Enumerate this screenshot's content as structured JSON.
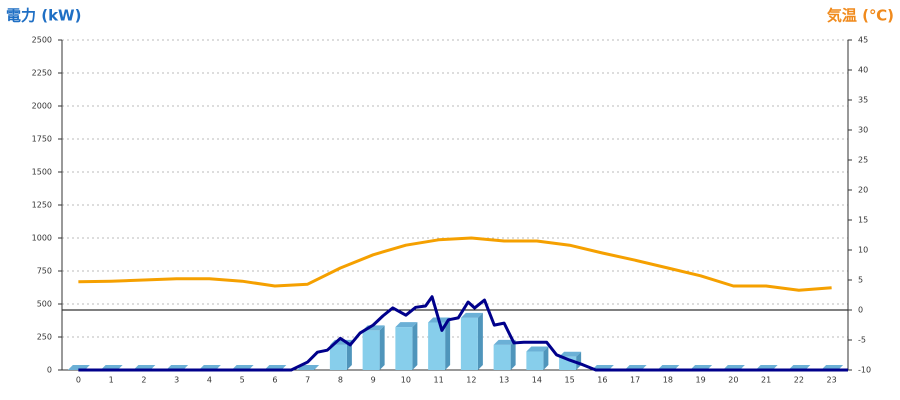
{
  "chart_data": {
    "type": "bar",
    "y_label": "電力 (kW)",
    "y2_label": "気温 (℃)",
    "categories": [
      "0",
      "1",
      "2",
      "3",
      "4",
      "5",
      "6",
      "7",
      "8",
      "9",
      "10",
      "11",
      "12",
      "13",
      "14",
      "15",
      "16",
      "17",
      "18",
      "19",
      "20",
      "21",
      "22",
      "23"
    ],
    "ylim": [
      0,
      2500
    ],
    "yticks": [
      0,
      250,
      500,
      750,
      1000,
      1250,
      1500,
      1750,
      2000,
      2250,
      2500
    ],
    "y2lim": [
      -10,
      45
    ],
    "y2ticks": [
      -10,
      -5,
      0,
      5,
      10,
      15,
      20,
      25,
      30,
      35,
      40,
      45
    ],
    "grid": true,
    "y2_zero_line": true,
    "series": [
      {
        "type": "bar",
        "color": "#87ceeb",
        "values": [
          0,
          0,
          0,
          0,
          0,
          0,
          0,
          0,
          190,
          300,
          325,
          360,
          395,
          190,
          140,
          100,
          0,
          0,
          0,
          0,
          0,
          0,
          0,
          0
        ]
      },
      {
        "type": "line",
        "color": "#00008b",
        "x": [
          0,
          6.5,
          7.0,
          7.3,
          7.6,
          8.0,
          8.3,
          8.6,
          9.0,
          9.3,
          9.6,
          10.0,
          10.3,
          10.6,
          10.8,
          11.1,
          11.3,
          11.6,
          11.9,
          12.1,
          12.4,
          12.7,
          13.0,
          13.3,
          13.6,
          14.0,
          14.3,
          14.6,
          15.0,
          15.4,
          15.8,
          23.5
        ],
        "values": [
          0,
          0,
          60,
          135,
          150,
          240,
          190,
          280,
          340,
          410,
          470,
          415,
          475,
          485,
          555,
          300,
          380,
          395,
          515,
          470,
          530,
          340,
          355,
          205,
          210,
          210,
          210,
          115,
          75,
          40,
          0,
          0
        ]
      },
      {
        "type": "line",
        "axis": "y2",
        "color": "#f5a000",
        "values": [
          4.7,
          4.8,
          5,
          5.2,
          5.2,
          4.8,
          4,
          4.3,
          7,
          9.2,
          10.8,
          11.7,
          12,
          11.5,
          11.5,
          10.8,
          9.5,
          8.3,
          7,
          5.7,
          4,
          4,
          3.3,
          3.7
        ]
      }
    ]
  }
}
